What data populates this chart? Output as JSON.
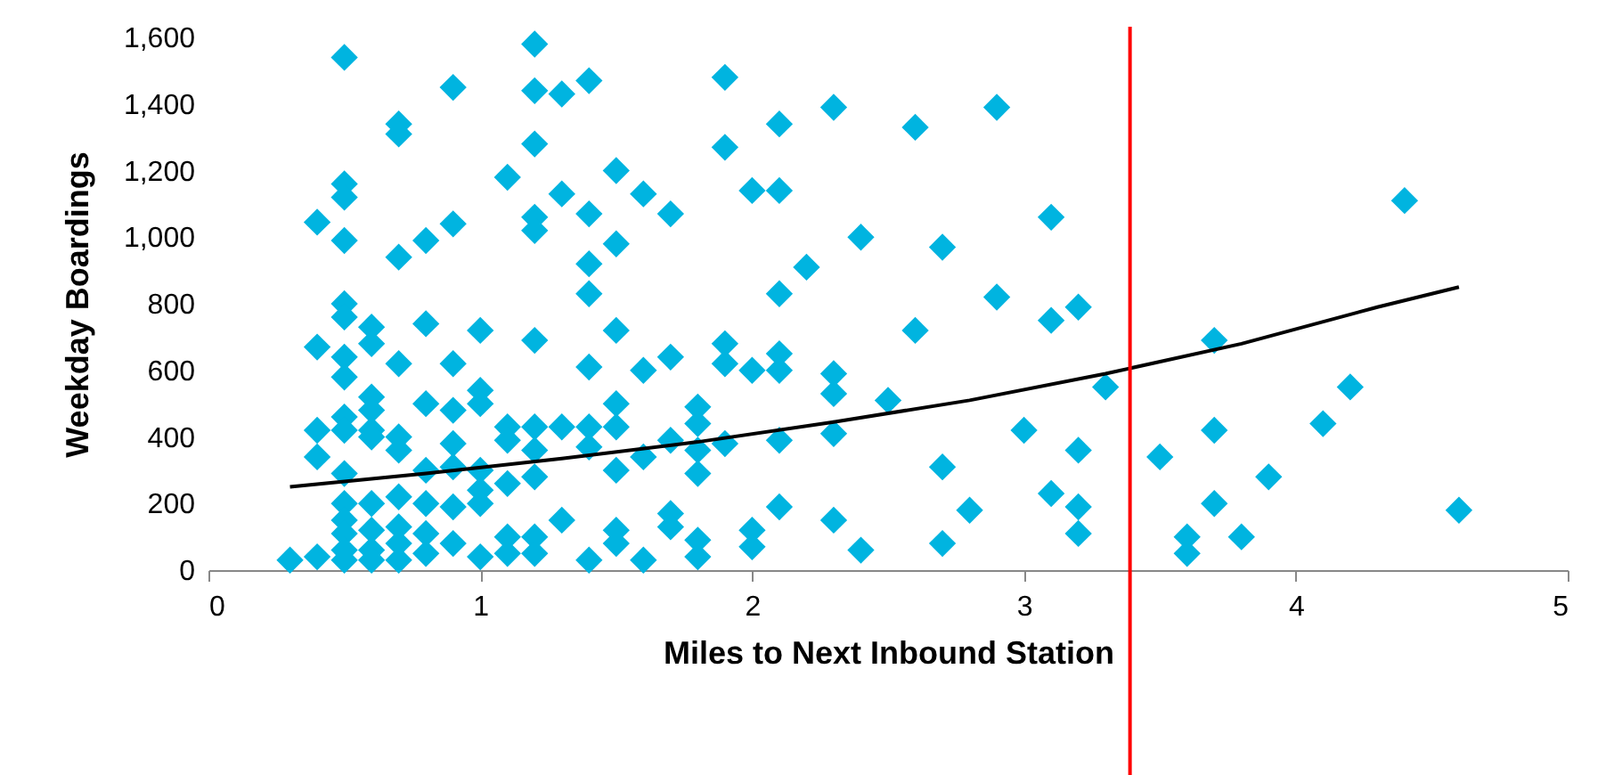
{
  "chart_data": {
    "type": "scatter",
    "xlabel": "Miles to Next Inbound Station",
    "ylabel": "Weekday Boardings",
    "xlim": [
      0,
      5
    ],
    "xticks": [
      0,
      1,
      2,
      3,
      4,
      5
    ],
    "ylim": [
      0,
      1600
    ],
    "yticks": [
      0,
      200,
      400,
      600,
      800,
      {
        "value": 1000,
        "label": "1,000"
      },
      {
        "value": 1200,
        "label": "1,200"
      },
      {
        "value": 1400,
        "label": "1,400"
      },
      {
        "value": 1600,
        "label": "1,600"
      }
    ],
    "grid": false,
    "marker": "diamond",
    "series": [
      {
        "color": "#00b4e0",
        "x": [
          0.3,
          0.4,
          0.4,
          0.4,
          0.4,
          0.4,
          0.5,
          0.5,
          0.5,
          0.5,
          0.5,
          0.5,
          0.5,
          0.5,
          0.5,
          0.5,
          0.5,
          0.5,
          0.5,
          0.5,
          0.5,
          0.5,
          0.6,
          0.6,
          0.6,
          0.6,
          0.6,
          0.6,
          0.6,
          0.6,
          0.6,
          0.6,
          0.7,
          0.7,
          0.7,
          0.7,
          0.7,
          0.7,
          0.7,
          0.7,
          0.7,
          0.7,
          0.8,
          0.8,
          0.8,
          0.8,
          0.8,
          0.8,
          0.8,
          0.9,
          0.9,
          0.9,
          0.9,
          0.9,
          0.9,
          0.9,
          0.9,
          1.0,
          1.0,
          1.0,
          1.0,
          1.0,
          1.0,
          1.0,
          1.1,
          1.1,
          1.1,
          1.1,
          1.1,
          1.1,
          1.2,
          1.2,
          1.2,
          1.2,
          1.2,
          1.2,
          1.2,
          1.2,
          1.2,
          1.2,
          1.2,
          1.3,
          1.3,
          1.3,
          1.3,
          1.4,
          1.4,
          1.4,
          1.4,
          1.4,
          1.4,
          1.4,
          1.4,
          1.5,
          1.5,
          1.5,
          1.5,
          1.5,
          1.5,
          1.5,
          1.5,
          1.6,
          1.6,
          1.6,
          1.6,
          1.7,
          1.7,
          1.7,
          1.7,
          1.7,
          1.8,
          1.8,
          1.8,
          1.8,
          1.8,
          1.8,
          1.9,
          1.9,
          1.9,
          1.9,
          1.9,
          2.0,
          2.0,
          2.0,
          2.0,
          2.1,
          2.1,
          2.1,
          2.1,
          2.1,
          2.1,
          2.1,
          2.2,
          2.3,
          2.3,
          2.3,
          2.3,
          2.3,
          2.4,
          2.4,
          2.5,
          2.6,
          2.6,
          2.7,
          2.7,
          2.7,
          2.8,
          2.9,
          2.9,
          3.0,
          3.1,
          3.1,
          3.1,
          3.2,
          3.2,
          3.2,
          3.2,
          3.3,
          3.5,
          3.6,
          3.6,
          3.7,
          3.7,
          3.7,
          3.8,
          3.9,
          4.1,
          4.2,
          4.4,
          4.6
        ],
        "values": [
          30,
          1045,
          670,
          420,
          340,
          40,
          1540,
          1160,
          1120,
          990,
          800,
          760,
          640,
          580,
          460,
          420,
          290,
          200,
          150,
          110,
          60,
          30,
          730,
          680,
          520,
          480,
          420,
          400,
          200,
          120,
          60,
          30,
          1340,
          1310,
          940,
          620,
          400,
          360,
          220,
          130,
          80,
          30,
          990,
          740,
          500,
          300,
          200,
          110,
          50,
          1450,
          1040,
          620,
          480,
          380,
          310,
          190,
          80,
          720,
          540,
          500,
          300,
          240,
          200,
          40,
          1180,
          430,
          390,
          260,
          100,
          50,
          1580,
          1440,
          1280,
          1060,
          1020,
          690,
          430,
          360,
          280,
          100,
          50,
          1430,
          1130,
          430,
          150,
          1470,
          1070,
          920,
          830,
          610,
          430,
          370,
          30,
          1200,
          980,
          720,
          500,
          430,
          300,
          120,
          80,
          1130,
          600,
          340,
          30,
          1070,
          640,
          390,
          170,
          130,
          490,
          440,
          360,
          290,
          90,
          40,
          1480,
          1270,
          680,
          620,
          380,
          1140,
          600,
          120,
          70,
          1340,
          1140,
          830,
          650,
          600,
          390,
          190,
          910,
          1390,
          590,
          530,
          410,
          150,
          1000,
          60,
          510,
          1330,
          720,
          970,
          310,
          80,
          180,
          1390,
          820,
          420,
          1060,
          750,
          230,
          790,
          360,
          190,
          110,
          550,
          340,
          100,
          50,
          690,
          420,
          200,
          100,
          280,
          440,
          550,
          1110,
          180
        ]
      },
      {
        "type": "line",
        "color": "#000000",
        "marker": "none",
        "line_style": "solid",
        "x": [
          0.3,
          0.8,
          1.3,
          1.8,
          2.3,
          2.8,
          3.3,
          3.8,
          4.3,
          4.6
        ],
        "values": [
          250,
          290,
          335,
          385,
          445,
          510,
          590,
          680,
          790,
          850
        ]
      }
    ],
    "ref_lines": [
      {
        "axis": "x",
        "value": 3.39,
        "color": "#ff0000",
        "line_style": "solid"
      }
    ]
  }
}
